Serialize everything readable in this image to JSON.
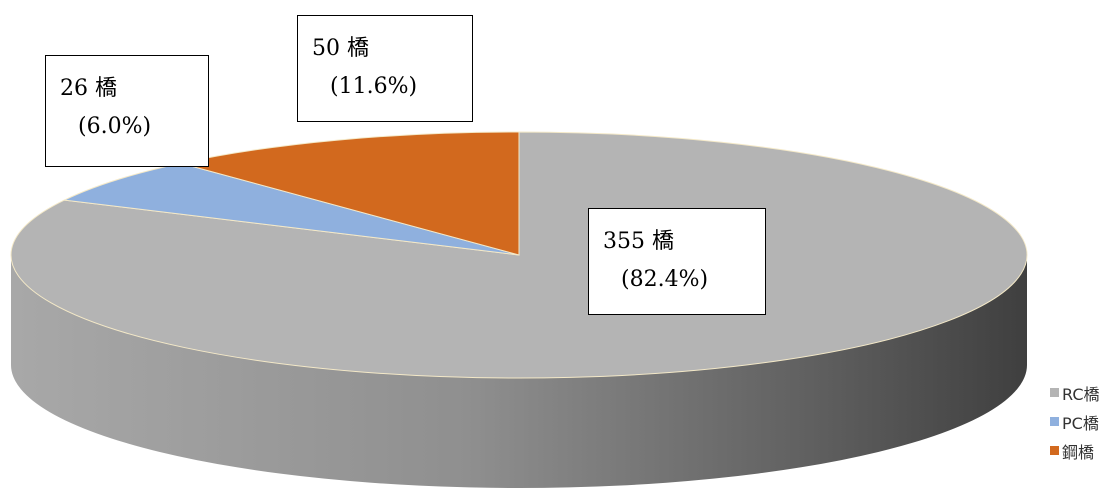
{
  "chart_data": {
    "type": "pie",
    "categories": [
      "RC橋",
      "PC橋",
      "鋼橋"
    ],
    "values": [
      355,
      26,
      50
    ],
    "percent_labels": [
      "(82.4%)",
      "(6.0%)",
      "(11.6%)"
    ],
    "count_labels": [
      "355 橋",
      "26 橋",
      "50 橋"
    ],
    "colors": [
      "#b4b4b4",
      "#8fb0de",
      "#d2691e"
    ],
    "legend_position": "bottom-right",
    "three_d": true
  }
}
